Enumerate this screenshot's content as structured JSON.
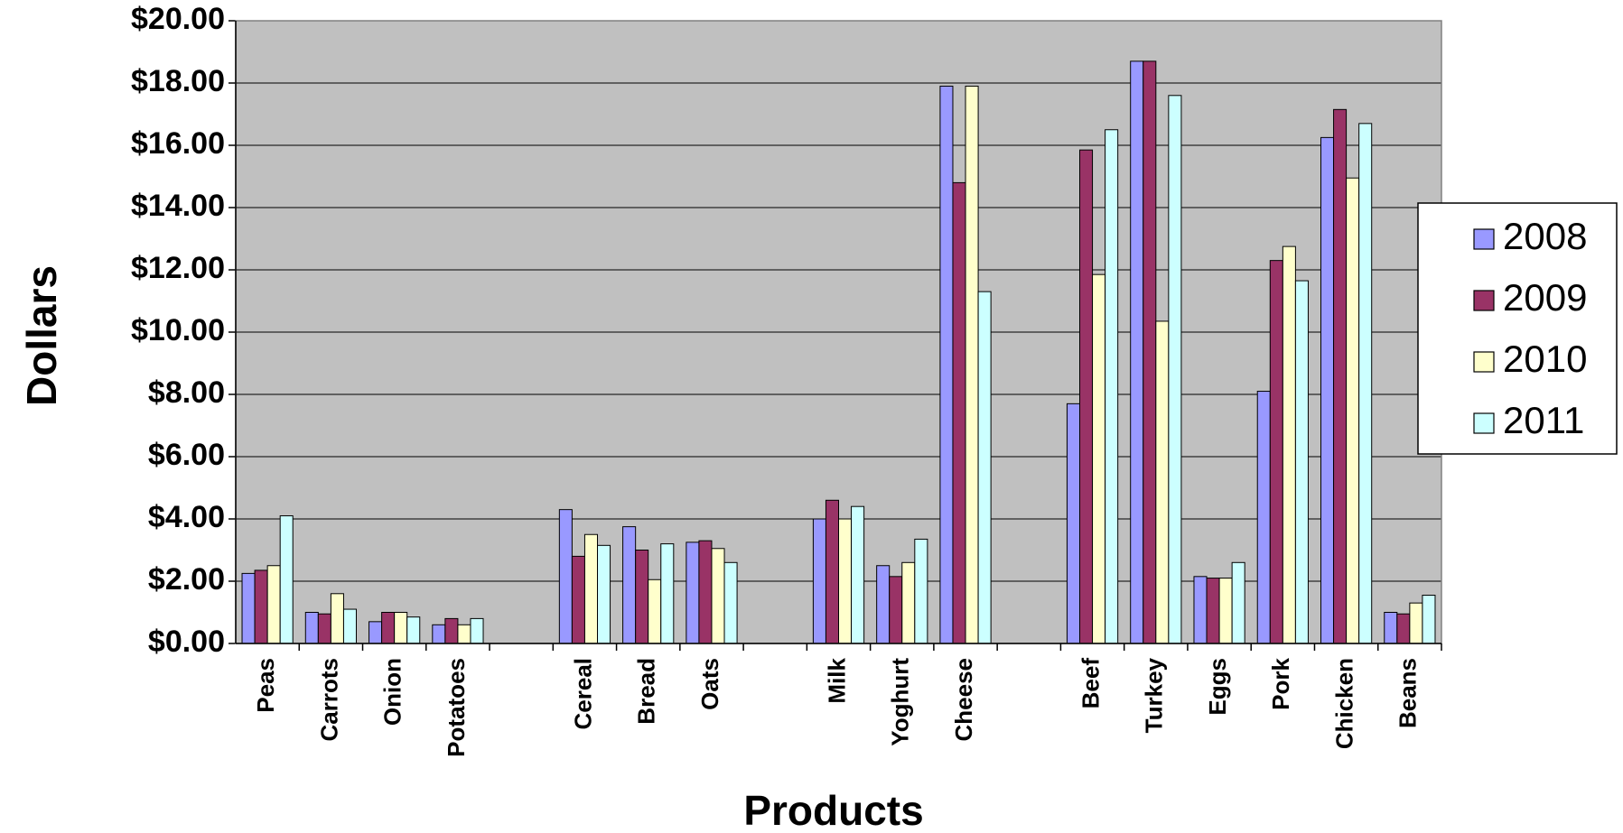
{
  "chart_data": {
    "type": "bar",
    "title": "",
    "xlabel": "Products",
    "ylabel": "Dollars",
    "ylim": [
      0,
      20
    ],
    "ytick_step": 2,
    "y_tick_format": "currency",
    "grid": true,
    "legend_position": "right",
    "plot_background": "#c0c0c0",
    "categories": [
      "Peas",
      "Carrots",
      "Onion",
      "Potatoes",
      "",
      "Cereal",
      "Bread",
      "Oats",
      "",
      "Milk",
      "Yoghurt",
      "Cheese",
      "",
      "Beef",
      "Turkey",
      "Eggs",
      "Pork",
      "Chicken",
      "Beans"
    ],
    "series": [
      {
        "name": "2008",
        "color": "#9999ff",
        "values": [
          2.25,
          1.0,
          0.7,
          0.6,
          null,
          4.3,
          3.75,
          3.25,
          null,
          4.0,
          2.5,
          17.9,
          null,
          7.7,
          18.7,
          2.15,
          8.1,
          16.25,
          1.0
        ]
      },
      {
        "name": "2009",
        "color": "#993366",
        "values": [
          2.35,
          0.95,
          1.0,
          0.8,
          null,
          2.8,
          3.0,
          3.3,
          null,
          4.6,
          2.15,
          14.8,
          null,
          15.85,
          18.7,
          2.1,
          12.3,
          17.15,
          0.95
        ]
      },
      {
        "name": "2010",
        "color": "#ffffcc",
        "values": [
          2.5,
          1.6,
          1.0,
          0.6,
          null,
          3.5,
          2.05,
          3.05,
          null,
          4.0,
          2.6,
          17.9,
          null,
          11.85,
          10.35,
          2.1,
          12.75,
          14.95,
          1.3
        ]
      },
      {
        "name": "2011",
        "color": "#ccffff",
        "values": [
          4.1,
          1.1,
          0.85,
          0.8,
          null,
          3.15,
          3.2,
          2.6,
          null,
          4.4,
          3.35,
          11.3,
          null,
          16.5,
          17.6,
          2.6,
          11.65,
          16.7,
          1.55
        ]
      }
    ]
  }
}
